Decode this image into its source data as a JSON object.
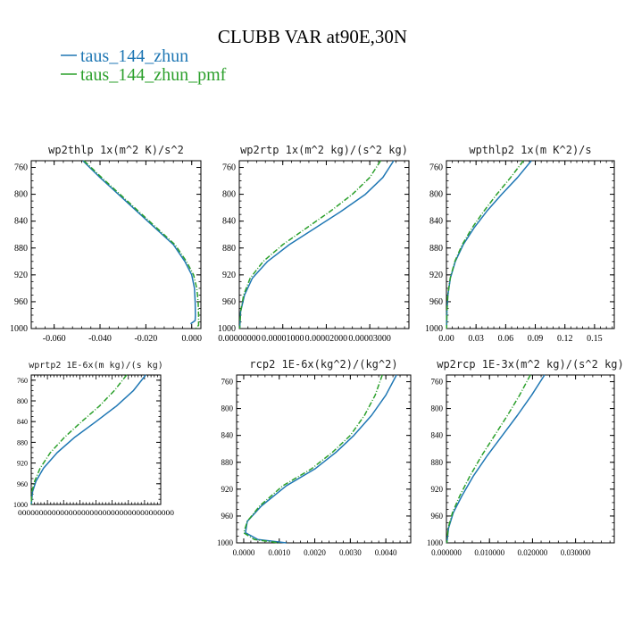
{
  "figure": {
    "title": "CLUBB VAR at90E,30N",
    "legend": [
      {
        "label": "taus_144_zhun",
        "color": "#1f77b4"
      },
      {
        "label": "taus_144_zhun_pmf",
        "color": "#2ca02c"
      }
    ]
  },
  "chart_data": [
    {
      "type": "line",
      "title": "wp2thlp  1x(m^2 K)/s^2",
      "xlim": [
        -0.07,
        0.004
      ],
      "ylim": [
        1000,
        750
      ],
      "xticks": [
        -0.06,
        -0.04,
        -0.02,
        0.0
      ],
      "xtick_labels": [
        "-0.060",
        "-0.040",
        "-0.020",
        "0.000"
      ],
      "yticks": [
        760,
        800,
        840,
        880,
        920,
        960,
        1000
      ],
      "series": [
        {
          "name": "taus_144_zhun",
          "color": "#1f77b4",
          "x": [
            -0.0475,
            -0.04,
            -0.032,
            -0.024,
            -0.016,
            -0.008,
            -0.003,
            0.0,
            0.0012,
            0.0015,
            0.0016,
            0.0015,
            -0.0005
          ],
          "y": [
            750,
            775,
            800,
            825,
            850,
            875,
            900,
            920,
            940,
            960,
            980,
            988,
            993
          ]
        },
        {
          "name": "taus_144_zhun_pmf",
          "color": "#2ca02c",
          "x": [
            -0.047,
            -0.0393,
            -0.0313,
            -0.0233,
            -0.0153,
            -0.0073,
            -0.0023,
            0.0008,
            0.0022,
            0.0028,
            0.003,
            0.003,
            0.003,
            0.0018
          ],
          "y": [
            750,
            775,
            800,
            825,
            850,
            875,
            900,
            920,
            940,
            960,
            980,
            990,
            995,
            1000
          ]
        }
      ]
    },
    {
      "type": "line",
      "title": "wp2rtp  1x(m^2 kg)/(s^2 kg)",
      "xlim": [
        0.0,
        3.9e-05
      ],
      "ylim": [
        1000,
        750
      ],
      "xticks": [
        0.0,
        1e-05,
        2e-05,
        3e-05
      ],
      "xtick_labels": [
        "0.00000000",
        "0.00001000",
        "0.00002000",
        "0.00003000"
      ],
      "yticks": [
        760,
        800,
        840,
        880,
        920,
        960,
        1000
      ],
      "series": [
        {
          "name": "taus_144_zhun",
          "color": "#1f77b4",
          "x": [
            3.55e-05,
            3.3e-05,
            2.9e-05,
            2.35e-05,
            1.75e-05,
            1.15e-05,
            6.5e-06,
            3e-06,
            1.2e-06,
            3e-07,
            1e-07
          ],
          "y": [
            750,
            775,
            800,
            825,
            850,
            875,
            900,
            925,
            950,
            975,
            1000
          ]
        },
        {
          "name": "taus_144_zhun_pmf",
          "color": "#2ca02c",
          "x": [
            3.25e-05,
            3e-05,
            2.6e-05,
            2.1e-05,
            1.55e-05,
            1e-05,
            5.5e-06,
            2.5e-06,
            1e-06,
            3e-07,
            1e-07
          ],
          "y": [
            750,
            775,
            800,
            825,
            850,
            875,
            900,
            925,
            950,
            975,
            1000
          ]
        }
      ]
    },
    {
      "type": "line",
      "title": "wpthlp2  1x(m K^2)/s",
      "xlim": [
        0.0,
        0.17
      ],
      "ylim": [
        1000,
        750
      ],
      "xticks": [
        0.0,
        0.03,
        0.06,
        0.09,
        0.12,
        0.15
      ],
      "xtick_labels": [
        "0.00",
        "0.03",
        "0.06",
        "0.09",
        "0.12",
        "0.15"
      ],
      "yticks": [
        760,
        800,
        840,
        880,
        920,
        960,
        1000
      ],
      "series": [
        {
          "name": "taus_144_zhun",
          "color": "#1f77b4",
          "x": [
            0.086,
            0.072,
            0.056,
            0.041,
            0.028,
            0.017,
            0.009,
            0.004,
            0.0015,
            0.0005,
            0.0002
          ],
          "y": [
            750,
            775,
            800,
            825,
            850,
            875,
            900,
            925,
            950,
            975,
            1000
          ]
        },
        {
          "name": "taus_144_zhun_pmf",
          "color": "#2ca02c",
          "x": [
            0.078,
            0.065,
            0.051,
            0.038,
            0.026,
            0.016,
            0.0085,
            0.0038,
            0.0014,
            0.0005,
            0.0002
          ],
          "y": [
            750,
            775,
            800,
            825,
            850,
            875,
            900,
            925,
            950,
            975,
            1000
          ]
        }
      ]
    },
    {
      "type": "line",
      "title": "wprtp2  1E-6x(m kg)/(s kg)",
      "xlim": [
        0.0,
        1.9e-06
      ],
      "ylim": [
        1000,
        750
      ],
      "xticks": [],
      "xtick_labels": [],
      "x_axis_label_text": "0000000000000000000000000000000000000",
      "yticks": [
        760,
        800,
        840,
        880,
        920,
        960,
        1000
      ],
      "series": [
        {
          "name": "taus_144_zhun",
          "color": "#1f77b4",
          "x": [
            1.68e-06,
            1.5e-06,
            1.25e-06,
            9.5e-07,
            6.4e-07,
            3.8e-07,
            1.8e-07,
            7e-08,
            2e-08,
            0.0
          ],
          "y": [
            750,
            780,
            810,
            840,
            870,
            900,
            930,
            955,
            975,
            1000
          ]
        },
        {
          "name": "taus_144_zhun_pmf",
          "color": "#2ca02c",
          "x": [
            1.4e-06,
            1.22e-06,
            1e-06,
            7.4e-07,
            4.9e-07,
            2.8e-07,
            1.3e-07,
            5e-08,
            1e-08,
            0.0
          ],
          "y": [
            750,
            780,
            810,
            840,
            870,
            900,
            930,
            955,
            975,
            1000
          ]
        }
      ]
    },
    {
      "type": "line",
      "title": "rcp2  1E-6x(kg^2)/(kg^2)",
      "xlim": [
        -0.0002,
        0.0047
      ],
      "ylim": [
        1000,
        750
      ],
      "xticks": [
        0.0,
        0.001,
        0.002,
        0.003,
        0.004
      ],
      "xtick_labels": [
        "0.0000",
        "0.0010",
        "0.0020",
        "0.0030",
        "0.0040"
      ],
      "yticks": [
        760,
        800,
        840,
        880,
        920,
        960,
        1000
      ],
      "series": [
        {
          "name": "taus_144_zhun",
          "color": "#1f77b4",
          "x": [
            0.0043,
            0.004,
            0.0036,
            0.0031,
            0.0026,
            0.002,
            0.0012,
            0.0005,
            0.0001,
            5e-05,
            0.0004,
            0.0012
          ],
          "y": [
            750,
            780,
            810,
            840,
            865,
            890,
            915,
            945,
            968,
            985,
            995,
            1000
          ]
        },
        {
          "name": "taus_144_zhun_pmf",
          "color": "#2ca02c",
          "x": [
            0.0039,
            0.0037,
            0.0034,
            0.003,
            0.0025,
            0.0019,
            0.0011,
            0.00045,
            0.0001,
            0.0,
            0.0003,
            0.001
          ],
          "y": [
            750,
            780,
            810,
            840,
            865,
            890,
            915,
            945,
            968,
            985,
            995,
            1000
          ]
        }
      ]
    },
    {
      "type": "line",
      "title": "wp2rcp  1E-3x(m^2 kg)/(s^2 kg)",
      "xlim": [
        0.0,
        0.039
      ],
      "ylim": [
        1000,
        750
      ],
      "xticks": [
        0.0,
        0.01,
        0.02,
        0.03
      ],
      "xtick_labels": [
        "0.000000",
        "0.010000",
        "0.020000",
        "0.030000"
      ],
      "yticks": [
        760,
        800,
        840,
        880,
        920,
        960,
        1000
      ],
      "series": [
        {
          "name": "taus_144_zhun",
          "color": "#1f77b4",
          "x": [
            0.0228,
            0.0198,
            0.0165,
            0.013,
            0.0095,
            0.0063,
            0.0036,
            0.0016,
            0.0005,
            0.0001
          ],
          "y": [
            750,
            780,
            810,
            840,
            870,
            900,
            930,
            955,
            978,
            1000
          ]
        },
        {
          "name": "taus_144_zhun_pmf",
          "color": "#2ca02c",
          "x": [
            0.0195,
            0.017,
            0.0142,
            0.0112,
            0.0082,
            0.0055,
            0.0031,
            0.0014,
            0.0004,
            0.0001
          ],
          "y": [
            750,
            780,
            810,
            840,
            870,
            900,
            930,
            955,
            978,
            1000
          ]
        }
      ]
    }
  ]
}
